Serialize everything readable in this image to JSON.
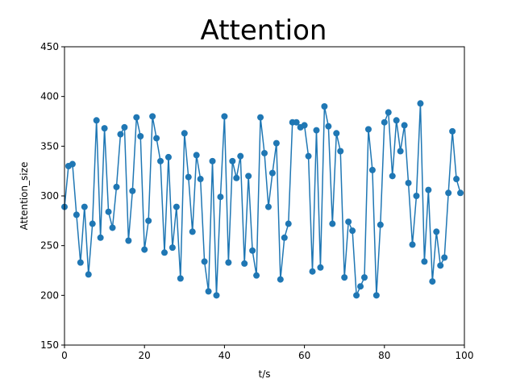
{
  "chart_data": {
    "type": "line",
    "title": "Attention",
    "xlabel": "t/s",
    "ylabel": "Attention_size",
    "xlim": [
      0,
      100
    ],
    "ylim": [
      150,
      450
    ],
    "xticks": [
      0,
      20,
      40,
      60,
      80,
      100
    ],
    "yticks": [
      150,
      200,
      250,
      300,
      350,
      400,
      450
    ],
    "grid": false,
    "marker": "circle",
    "series": [
      {
        "color": "#1f77b4",
        "x": [
          0,
          1,
          2,
          3,
          4,
          5,
          6,
          7,
          8,
          9,
          10,
          11,
          12,
          13,
          14,
          15,
          16,
          17,
          18,
          19,
          20,
          21,
          22,
          23,
          24,
          25,
          26,
          27,
          28,
          29,
          30,
          31,
          32,
          33,
          34,
          35,
          36,
          37,
          38,
          39,
          40,
          41,
          42,
          43,
          44,
          45,
          46,
          47,
          48,
          49,
          50,
          51,
          52,
          53,
          54,
          55,
          56,
          57,
          58,
          59,
          60,
          61,
          62,
          63,
          64,
          65,
          66,
          67,
          68,
          69,
          70,
          71,
          72,
          73,
          74,
          75,
          76,
          77,
          78,
          79,
          80,
          81,
          82,
          83,
          84,
          85,
          86,
          87,
          88,
          89,
          90,
          91,
          92,
          93,
          94,
          95,
          96,
          97,
          98,
          99
        ],
        "y": [
          289,
          330,
          332,
          281,
          233,
          289,
          221,
          272,
          376,
          258,
          368,
          284,
          268,
          309,
          362,
          369,
          255,
          305,
          379,
          360,
          246,
          275,
          380,
          358,
          335,
          243,
          339,
          248,
          289,
          217,
          363,
          319,
          264,
          341,
          317,
          234,
          204,
          335,
          200,
          299,
          380,
          233,
          335,
          318,
          340,
          232,
          320,
          245,
          220,
          379,
          343,
          289,
          323,
          353,
          216,
          258,
          272,
          374,
          374,
          369,
          371,
          340,
          224,
          366,
          228,
          390,
          370,
          272,
          363,
          345,
          218,
          274,
          265,
          200,
          209,
          218,
          367,
          326,
          200,
          271,
          374,
          384,
          320,
          376,
          345,
          371,
          313,
          251,
          300,
          393,
          234,
          306,
          214,
          264,
          230,
          238,
          303,
          365,
          317,
          303
        ]
      }
    ]
  }
}
